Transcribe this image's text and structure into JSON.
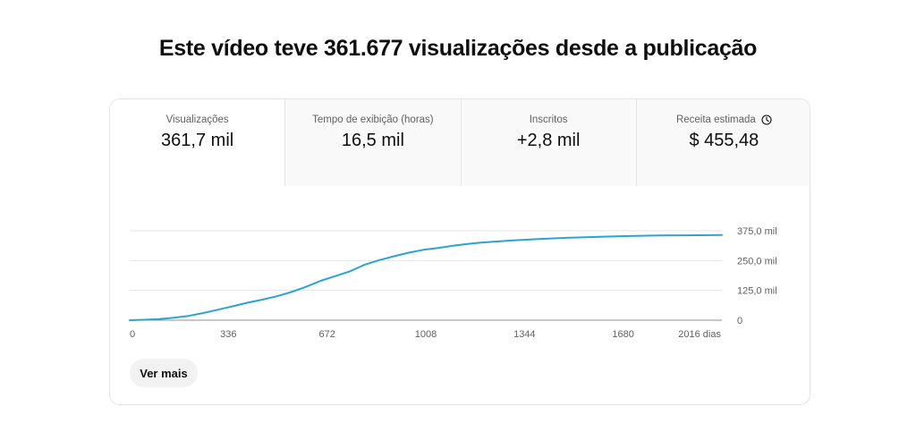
{
  "headline": "Este vídeo teve 361.677 visualizações desde a publicação",
  "tabs": [
    {
      "label": "Visualizações",
      "value": "361,7 mil",
      "selected": true
    },
    {
      "label": "Tempo de exibição (horas)",
      "value": "16,5 mil",
      "selected": false
    },
    {
      "label": "Inscritos",
      "value": "+2,8 mil",
      "selected": false
    },
    {
      "label": "Receita estimada",
      "value": "$ 455,48",
      "selected": false,
      "icon": "clock-icon"
    }
  ],
  "more_button_label": "Ver mais",
  "colors": {
    "line": "#2ba3d4",
    "grid": "#e5e5e5",
    "axis": "#909090"
  },
  "chart_data": {
    "type": "line",
    "title": "",
    "xlabel": "",
    "ylabel": "",
    "x_unit": "dias",
    "xlim": [
      0,
      2016
    ],
    "ylim": [
      0,
      375000
    ],
    "x_ticks": [
      0,
      336,
      672,
      1008,
      1344,
      1680,
      2016
    ],
    "x_tick_labels": [
      "0",
      "336",
      "672",
      "1008",
      "1344",
      "1680",
      "2016 dias"
    ],
    "y_ticks": [
      0,
      125000,
      250000,
      375000
    ],
    "y_tick_labels": [
      "0",
      "125,0 mil",
      "250,0 mil",
      "375,0 mil"
    ],
    "grid": true,
    "legend": "none",
    "series": [
      {
        "x": [
          0,
          50,
          100,
          150,
          200,
          250,
          300,
          350,
          400,
          450,
          500,
          550,
          600,
          650,
          700,
          750,
          800,
          850,
          900,
          950,
          1000,
          1050,
          1100,
          1150,
          1200,
          1300,
          1400,
          1500,
          1600,
          1700,
          1800,
          1900,
          2016
        ],
        "values": [
          0,
          2000,
          5000,
          10000,
          18000,
          30000,
          44000,
          58000,
          73000,
          86000,
          100000,
          118000,
          140000,
          165000,
          185000,
          205000,
          233000,
          252000,
          268000,
          283000,
          295000,
          303000,
          312000,
          320000,
          326000,
          334000,
          341000,
          346000,
          350000,
          353000,
          355000,
          356000,
          357000
        ]
      }
    ]
  }
}
